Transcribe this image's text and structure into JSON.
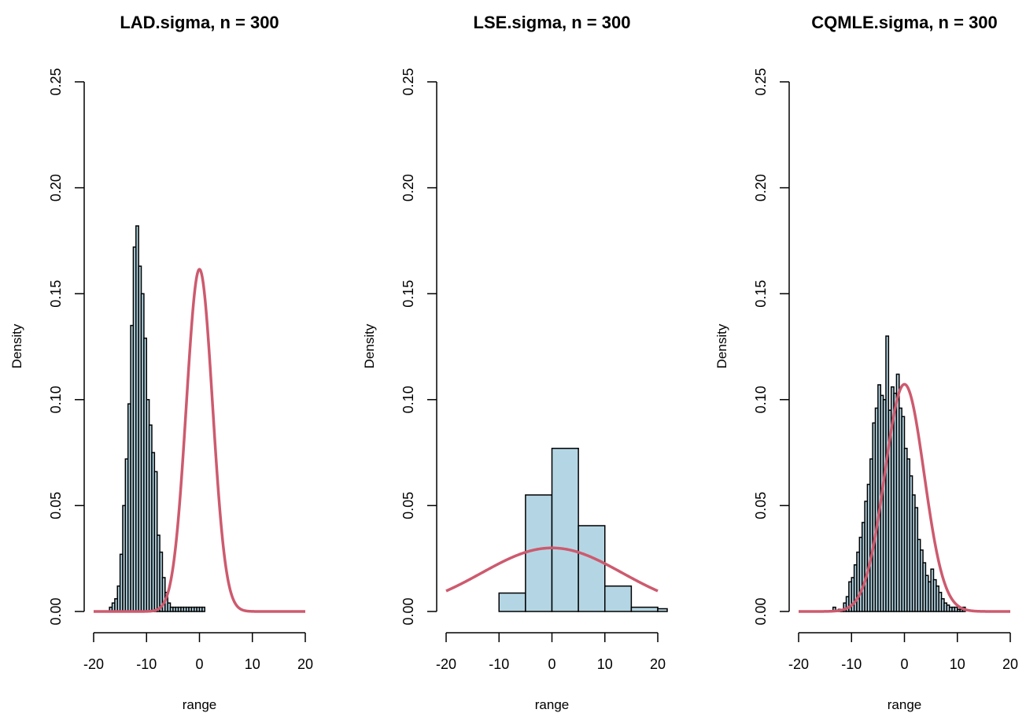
{
  "chart_data": [
    {
      "type": "histogram",
      "title": "LAD.sigma, n = 300",
      "xlabel": "range",
      "ylabel": "Density",
      "xlim": [
        -20,
        20
      ],
      "ylim": [
        0,
        0.25
      ],
      "xticks": [
        -20,
        -10,
        0,
        10,
        20
      ],
      "yticks": [
        0.0,
        0.05,
        0.1,
        0.15,
        0.2,
        0.25
      ],
      "xtick_labels": [
        "-20",
        "-10",
        "0",
        "10",
        "20"
      ],
      "ytick_labels": [
        "0.00",
        "0.05",
        "0.10",
        "0.15",
        "0.20",
        "0.25"
      ],
      "bin_start": -17,
      "bin_width": 0.5,
      "densities": [
        0.002,
        0.004,
        0.006,
        0.012,
        0.027,
        0.05,
        0.072,
        0.098,
        0.135,
        0.172,
        0.182,
        0.163,
        0.15,
        0.129,
        0.1,
        0.088,
        0.075,
        0.066,
        0.036,
        0.028,
        0.016,
        0.009,
        0.004,
        0.002,
        0.002,
        0.002,
        0.002,
        0.002,
        0.002,
        0.002,
        0.002,
        0.002,
        0.002,
        0.002,
        0.002,
        0.002
      ],
      "bar_fill": "#b4d6e4",
      "curve": {
        "label": "normal density",
        "mean": 0,
        "sd": 2.47,
        "color": "#cd5a6e"
      }
    },
    {
      "type": "histogram",
      "title": "LSE.sigma, n = 300",
      "xlabel": "range",
      "ylabel": "Density",
      "xlim": [
        -20,
        20
      ],
      "ylim": [
        0,
        0.25
      ],
      "xticks": [
        -20,
        -10,
        0,
        10,
        20
      ],
      "yticks": [
        0.0,
        0.05,
        0.1,
        0.15,
        0.2,
        0.25
      ],
      "xtick_labels": [
        "-20",
        "-10",
        "0",
        "10",
        "20"
      ],
      "ytick_labels": [
        "0.00",
        "0.05",
        "0.10",
        "0.15",
        "0.20",
        "0.25"
      ],
      "bin_start": -10,
      "bin_width": 5,
      "densities": [
        0.0087,
        0.055,
        0.077,
        0.0405,
        0.012,
        0.002,
        0.0013
      ],
      "bar_fill": "#b4d6e4",
      "curve": {
        "label": "normal density",
        "mean": 0,
        "sd": 13.3,
        "color": "#cd5a6e"
      }
    },
    {
      "type": "histogram",
      "title": "CQMLE.sigma, n = 300",
      "xlabel": "range",
      "ylabel": "Density",
      "xlim": [
        -20,
        20
      ],
      "ylim": [
        0,
        0.25
      ],
      "xticks": [
        -20,
        -10,
        0,
        10,
        20
      ],
      "yticks": [
        0.0,
        0.05,
        0.1,
        0.15,
        0.2,
        0.25
      ],
      "xtick_labels": [
        "-20",
        "-10",
        "0",
        "10",
        "20"
      ],
      "ytick_labels": [
        "0.00",
        "0.05",
        "0.10",
        "0.15",
        "0.20",
        "0.25"
      ],
      "bin_start": -13.5,
      "bin_width": 0.5,
      "densities": [
        0.002,
        0,
        0.001,
        0.001,
        0.004,
        0.007,
        0.014,
        0.016,
        0.022,
        0.028,
        0.035,
        0.042,
        0.052,
        0.06,
        0.072,
        0.089,
        0.096,
        0.107,
        0.102,
        0.1,
        0.13,
        0.095,
        0.106,
        0.103,
        0.112,
        0.096,
        0.092,
        0.077,
        0.072,
        0.064,
        0.055,
        0.049,
        0.034,
        0.029,
        0.023,
        0.017,
        0.014,
        0.02,
        0.015,
        0.012,
        0.009,
        0.006,
        0.004,
        0.003,
        0.002,
        0.002,
        0.002,
        0.001,
        0.001,
        0.002
      ],
      "bar_fill": "#b4d6e4",
      "curve": {
        "label": "normal density",
        "mean": 0,
        "sd": 3.72,
        "color": "#cd5a6e"
      }
    }
  ]
}
